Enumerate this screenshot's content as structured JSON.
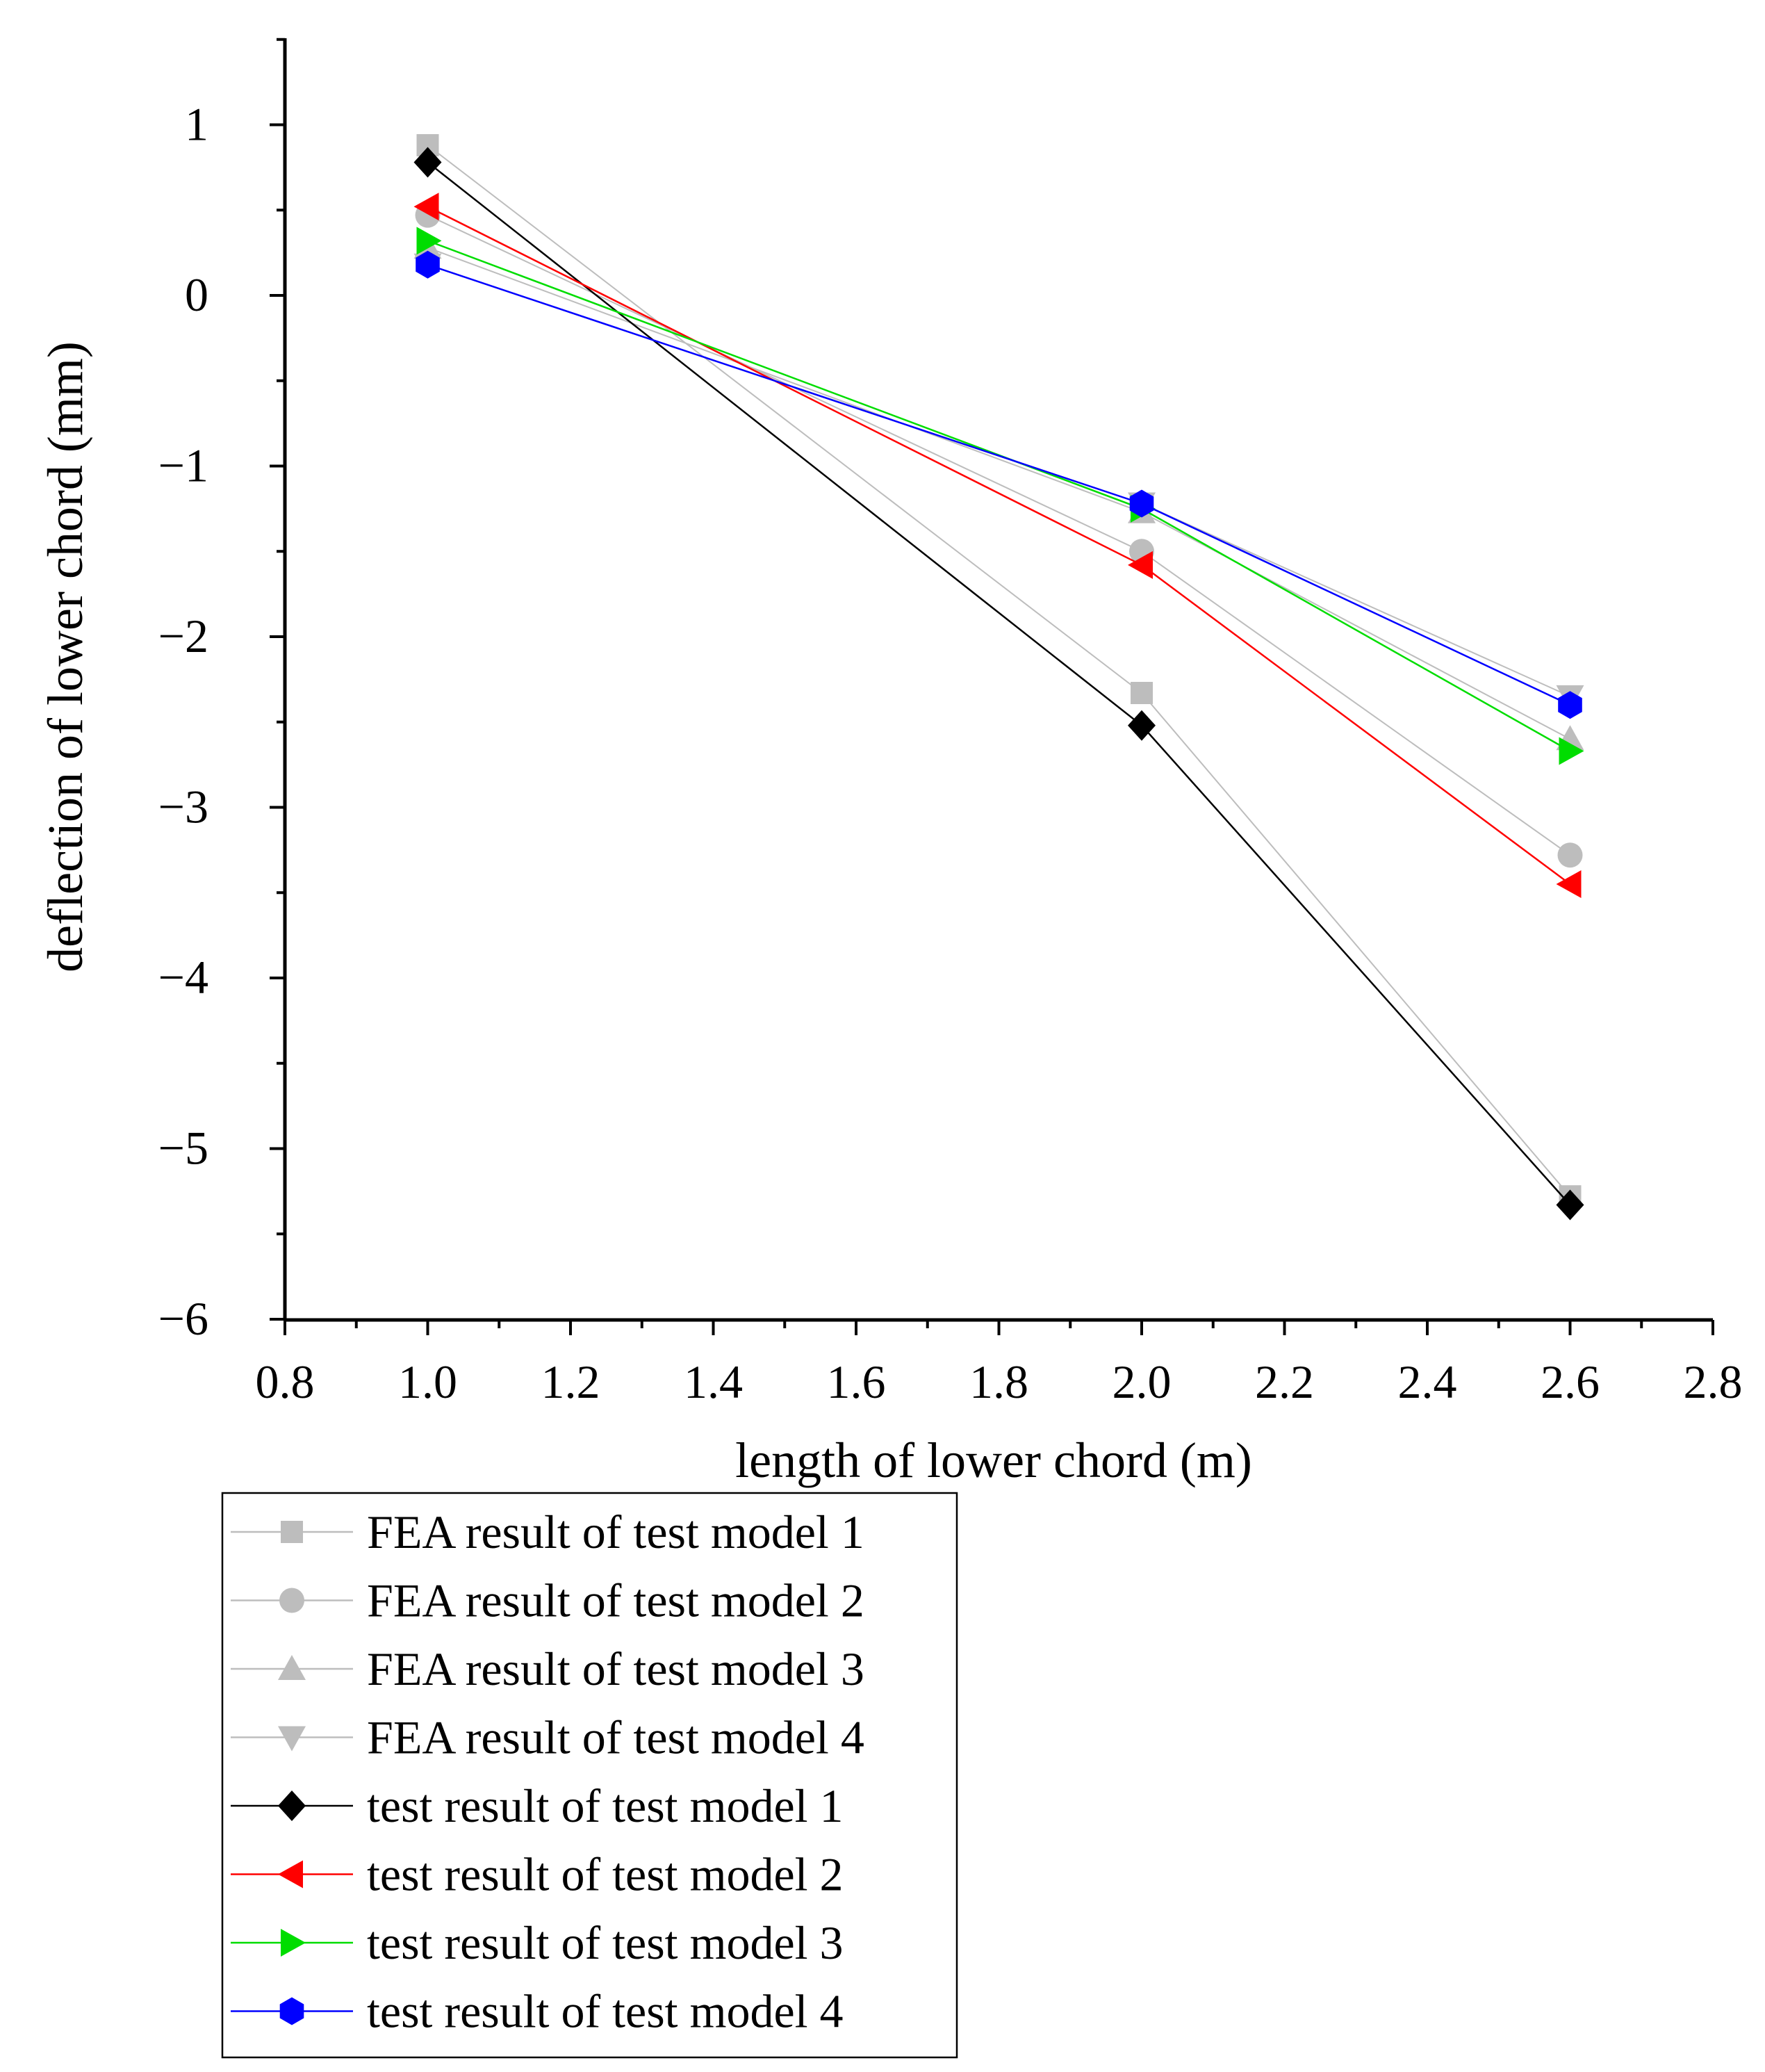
{
  "chart_data": {
    "type": "line",
    "title": "",
    "xlabel": "length of lower chord (m)",
    "ylabel": "deflection of lower chord (mm)",
    "xlim": [
      0.8,
      2.8
    ],
    "ylim": [
      -6,
      1.5
    ],
    "x_ticks": [
      0.8,
      1.0,
      1.2,
      1.4,
      1.6,
      1.8,
      2.0,
      2.2,
      2.4,
      2.6,
      2.8
    ],
    "x_tick_labels": [
      "0.8",
      "1.0",
      "1.2",
      "1.4",
      "1.6",
      "1.8",
      "2.0",
      "2.2",
      "2.4",
      "2.6",
      "2.8"
    ],
    "y_ticks": [
      -6,
      -5,
      -4,
      -3,
      -2,
      -1,
      0,
      1
    ],
    "y_tick_labels": [
      "−6",
      "−5",
      "−4",
      "−3",
      "−2",
      "−1",
      "0",
      "1"
    ],
    "grid": false,
    "legend_position": "below-left",
    "x": [
      1.0,
      2.0,
      2.6
    ],
    "series": [
      {
        "name": "FEA result of test model 1",
        "values": [
          0.88,
          -2.33,
          -5.28
        ],
        "color": "#bdbdbd",
        "marker": "square"
      },
      {
        "name": "FEA result of test model 2",
        "values": [
          0.47,
          -1.5,
          -3.28
        ],
        "color": "#bdbdbd",
        "marker": "circle"
      },
      {
        "name": "FEA result of test model 3",
        "values": [
          0.28,
          -1.27,
          -2.6
        ],
        "color": "#bdbdbd",
        "marker": "triangle-up"
      },
      {
        "name": "FEA result of test model 4",
        "values": [
          0.18,
          -1.22,
          -2.35
        ],
        "color": "#bdbdbd",
        "marker": "triangle-down"
      },
      {
        "name": "test result of test model 1",
        "values": [
          0.78,
          -2.52,
          -5.33
        ],
        "color": "#000000",
        "marker": "diamond"
      },
      {
        "name": "test result of test model 2",
        "values": [
          0.52,
          -1.58,
          -3.45
        ],
        "color": "#ff0000",
        "marker": "triangle-left"
      },
      {
        "name": "test result of test model 3",
        "values": [
          0.32,
          -1.25,
          -2.67
        ],
        "color": "#00dd00",
        "marker": "triangle-right"
      },
      {
        "name": "test result of test model 4",
        "values": [
          0.18,
          -1.22,
          -2.4
        ],
        "color": "#0000ff",
        "marker": "hexagon"
      }
    ]
  }
}
